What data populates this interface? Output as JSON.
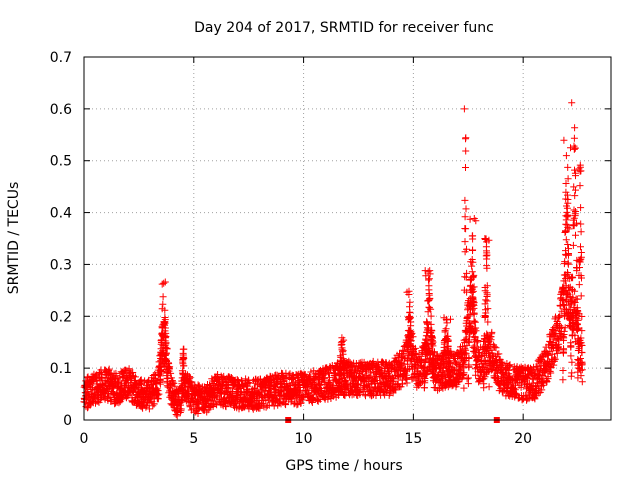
{
  "chart_data": {
    "type": "scatter",
    "title": "Day 204 of 2017, SRMTID for receiver func",
    "xlabel": "GPS time / hours",
    "ylabel": "SRMTID / TECUs",
    "xlim": [
      0,
      24
    ],
    "ylim": [
      0,
      0.7
    ],
    "xticks": [
      0,
      5,
      10,
      15,
      20
    ],
    "yticks": [
      0,
      0.1,
      0.2,
      0.3,
      0.4,
      0.5,
      0.6,
      0.7
    ],
    "grid": true,
    "marker": "+",
    "color": "#ff0000",
    "baseline_flags": [
      9.3,
      18.8
    ],
    "profile": [
      [
        0.0,
        0.05
      ],
      [
        0.5,
        0.06
      ],
      [
        1.0,
        0.07
      ],
      [
        1.5,
        0.06
      ],
      [
        2.0,
        0.07
      ],
      [
        2.5,
        0.05
      ],
      [
        3.0,
        0.05
      ],
      [
        3.4,
        0.07
      ],
      [
        3.6,
        0.16
      ],
      [
        3.8,
        0.1
      ],
      [
        4.0,
        0.05
      ],
      [
        4.3,
        0.03
      ],
      [
        4.6,
        0.07
      ],
      [
        5.0,
        0.04
      ],
      [
        5.5,
        0.04
      ],
      [
        6.0,
        0.06
      ],
      [
        7.0,
        0.05
      ],
      [
        8.0,
        0.05
      ],
      [
        9.0,
        0.06
      ],
      [
        10.0,
        0.06
      ],
      [
        11.0,
        0.07
      ],
      [
        11.7,
        0.08
      ],
      [
        12.0,
        0.08
      ],
      [
        13.0,
        0.08
      ],
      [
        14.0,
        0.08
      ],
      [
        14.5,
        0.1
      ],
      [
        14.9,
        0.14
      ],
      [
        15.2,
        0.09
      ],
      [
        15.8,
        0.14
      ],
      [
        16.0,
        0.09
      ],
      [
        16.5,
        0.1
      ],
      [
        17.0,
        0.1
      ],
      [
        17.3,
        0.12
      ],
      [
        17.6,
        0.22
      ],
      [
        18.0,
        0.1
      ],
      [
        18.5,
        0.14
      ],
      [
        19.0,
        0.08
      ],
      [
        20.0,
        0.07
      ],
      [
        20.5,
        0.07
      ],
      [
        21.0,
        0.1
      ],
      [
        21.5,
        0.16
      ],
      [
        22.0,
        0.24
      ],
      [
        22.3,
        0.22
      ],
      [
        22.7,
        0.1
      ]
    ],
    "bursts": [
      {
        "t0": 3.45,
        "t1": 3.8,
        "peak": 0.27
      },
      {
        "t0": 4.45,
        "t1": 4.6,
        "peak": 0.14
      },
      {
        "t0": 11.6,
        "t1": 11.9,
        "peak": 0.16
      },
      {
        "t0": 14.7,
        "t1": 14.95,
        "peak": 0.25
      },
      {
        "t0": 15.5,
        "t1": 15.95,
        "peak": 0.29
      },
      {
        "t0": 16.3,
        "t1": 16.7,
        "peak": 0.2
      },
      {
        "t0": 17.3,
        "t1": 17.45,
        "peak": 0.6
      },
      {
        "t0": 17.5,
        "t1": 17.85,
        "peak": 0.39
      },
      {
        "t0": 18.2,
        "t1": 18.45,
        "peak": 0.36
      },
      {
        "t0": 21.8,
        "t1": 22.2,
        "peak": 0.55
      },
      {
        "t0": 22.2,
        "t1": 22.5,
        "peak": 0.62
      },
      {
        "t0": 22.5,
        "t1": 22.7,
        "peak": 0.5
      }
    ]
  }
}
